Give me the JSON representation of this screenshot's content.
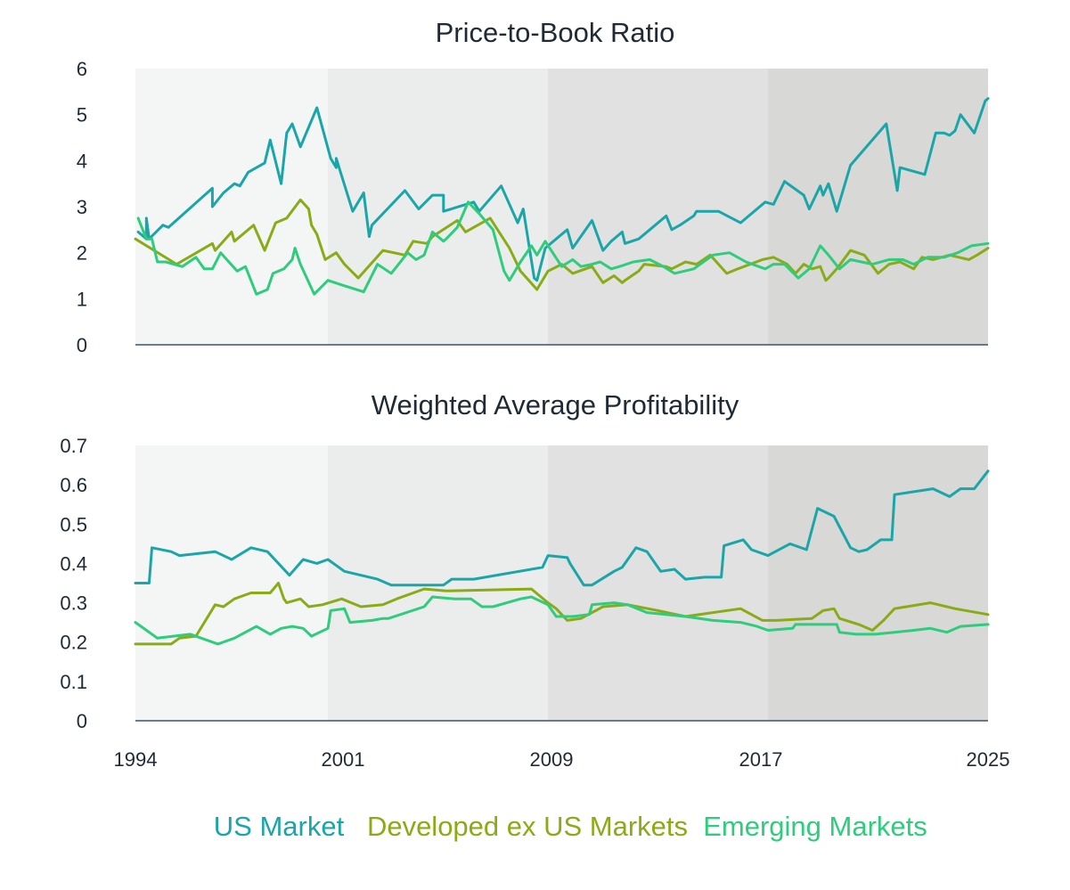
{
  "chart_data": {
    "type": "line",
    "x_tick_labels": [
      "1994",
      "2001",
      "2009",
      "2017",
      "2025"
    ],
    "x_range": [
      1994,
      2025
    ],
    "era_bands": [
      [
        1994,
        2001
      ],
      [
        2001,
        2009
      ],
      [
        2009,
        2017
      ],
      [
        2017,
        2025
      ]
    ],
    "colors": {
      "us": "#1aa6a8",
      "developed": "#8aab16",
      "emerging": "#2ecc7c",
      "bands": [
        "#f4f6f5",
        "#eaedec",
        "#e0e1e0",
        "#d8d8d7"
      ],
      "axis": "#3d5266"
    },
    "legend": [
      {
        "key": "us",
        "label": "US Market"
      },
      {
        "key": "developed",
        "label": "Developed ex US Markets"
      },
      {
        "key": "emerging",
        "label": "Emerging Markets"
      }
    ],
    "panels": [
      {
        "title": "Price-to-Book Ratio",
        "ylim": [
          0,
          6
        ],
        "y_ticks": [
          "0",
          "1",
          "2",
          "3",
          "4",
          "5",
          "6"
        ],
        "series": [
          {
            "key": "us",
            "name": "US Market",
            "x": [
              1994.1,
              1994.4,
              1994.4,
              1994.5,
              1995.0,
              1995.2,
              1996.8,
              1996.8,
              1997.2,
              1997.6,
              1997.8,
              1998.1,
              1998.7,
              1998.9,
              1999.3,
              1999.5,
              1999.7,
              2000.0,
              2000.6,
              2001.1,
              2001.3,
              2001.3,
              2001.9,
              2002.3,
              2002.5,
              2002.6,
              2003.8,
              2004.3,
              2004.8,
              2005.2,
              2005.2,
              2006.3,
              2006.5,
              2007.3,
              2007.9,
              2008.1,
              2008.5,
              2008.6,
              2008.9,
              2009.0,
              2009.7,
              2009.9,
              2010.6,
              2011.0,
              2011.3,
              2011.7,
              2011.8,
              2012.3,
              2012.8,
              2013.3,
              2013.5,
              2013.8,
              2014.3,
              2014.4,
              2015.2,
              2016.0,
              2016.9,
              2017.2,
              2017.6,
              2018.3,
              2018.5,
              2018.9,
              2019.0,
              2019.2,
              2019.5,
              2019.7,
              2020.0,
              2021.3,
              2021.7,
              2021.8,
              2022.7,
              2023.1,
              2023.4,
              2023.6,
              2023.8,
              2024.0,
              2024.5,
              2024.9,
              2025.0
            ],
            "y": [
              2.45,
              2.3,
              2.75,
              2.3,
              2.6,
              2.55,
              3.4,
              3.0,
              3.3,
              3.5,
              3.45,
              3.75,
              3.95,
              4.45,
              3.5,
              4.6,
              4.8,
              4.3,
              5.15,
              4.05,
              3.85,
              4.05,
              2.9,
              3.3,
              2.35,
              2.6,
              3.35,
              2.95,
              3.25,
              3.25,
              2.9,
              3.1,
              2.9,
              3.45,
              2.65,
              2.95,
              1.45,
              1.4,
              2.1,
              2.15,
              2.5,
              2.1,
              2.7,
              2.05,
              2.25,
              2.45,
              2.2,
              2.3,
              2.55,
              2.8,
              2.5,
              2.6,
              2.8,
              2.9,
              2.9,
              2.65,
              3.1,
              3.05,
              3.55,
              3.25,
              2.95,
              3.45,
              3.25,
              3.5,
              2.9,
              3.3,
              3.9,
              4.8,
              3.35,
              3.85,
              3.7,
              4.6,
              4.6,
              4.55,
              4.65,
              5.0,
              4.6,
              5.3,
              5.35
            ]
          },
          {
            "key": "developed",
            "name": "Developed ex US Markets",
            "x": [
              1994.0,
              1995.5,
              1996.8,
              1996.9,
              1997.5,
              1997.6,
              1998.3,
              1998.7,
              1999.1,
              1999.5,
              2000.0,
              2000.3,
              2000.4,
              2000.6,
              2000.9,
              2001.3,
              2001.6,
              2002.1,
              2003.0,
              2003.8,
              2004.1,
              2004.6,
              2004.8,
              2005.7,
              2006.0,
              2006.9,
              2007.6,
              2008.0,
              2008.6,
              2009.0,
              2009.5,
              2009.9,
              2010.6,
              2011.0,
              2011.4,
              2011.7,
              2011.8,
              2012.3,
              2012.5,
              2013.3,
              2013.5,
              2014.0,
              2014.4,
              2014.9,
              2015.5,
              2015.9,
              2016.8,
              2017.2,
              2017.7,
              2018.0,
              2018.3,
              2018.6,
              2018.9,
              2019.1,
              2019.2,
              2019.5,
              2020.0,
              2020.5,
              2021.0,
              2021.4,
              2021.8,
              2022.3,
              2022.6,
              2023.0,
              2023.6,
              2024.3,
              2024.6,
              2025.0
            ],
            "y": [
              2.3,
              1.75,
              2.2,
              2.05,
              2.45,
              2.25,
              2.6,
              2.05,
              2.65,
              2.75,
              3.15,
              2.95,
              2.6,
              2.4,
              1.85,
              2.0,
              1.75,
              1.45,
              2.05,
              1.95,
              2.25,
              2.2,
              2.35,
              2.7,
              2.45,
              2.75,
              2.1,
              1.6,
              1.2,
              1.6,
              1.75,
              1.55,
              1.7,
              1.35,
              1.5,
              1.35,
              1.4,
              1.6,
              1.75,
              1.7,
              1.65,
              1.8,
              1.75,
              1.95,
              1.55,
              1.65,
              1.85,
              1.9,
              1.75,
              1.55,
              1.75,
              1.65,
              1.7,
              1.4,
              1.45,
              1.65,
              2.05,
              1.95,
              1.55,
              1.75,
              1.8,
              1.65,
              1.9,
              1.85,
              1.95,
              1.85,
              1.95,
              2.1
            ]
          },
          {
            "key": "emerging",
            "name": "Emerging Markets",
            "x": [
              1994.1,
              1994.4,
              1994.6,
              1994.8,
              1995.1,
              1995.7,
              1996.2,
              1996.5,
              1996.8,
              1997.1,
              1997.7,
              1998.0,
              1998.4,
              1998.8,
              1999.0,
              1999.4,
              1999.7,
              1999.8,
              2000.0,
              2000.5,
              2001.0,
              2001.5,
              2002.3,
              2002.8,
              2003.3,
              2003.5,
              2003.9,
              2004.2,
              2004.5,
              2004.8,
              2005.2,
              2005.3,
              2005.7,
              2006.1,
              2006.5,
              2007.0,
              2007.4,
              2007.6,
              2008.0,
              2008.4,
              2008.6,
              2008.9,
              2009.5,
              2009.9,
              2010.2,
              2010.6,
              2010.9,
              2011.3,
              2011.6,
              2012.1,
              2012.7,
              2013.2,
              2013.6,
              2014.3,
              2015.0,
              2015.6,
              2016.2,
              2016.9,
              2017.2,
              2017.6,
              2018.1,
              2018.5,
              2018.9,
              2019.2,
              2019.6,
              2020.0,
              2020.8,
              2021.4,
              2021.9,
              2022.3,
              2022.8,
              2023.4,
              2023.9,
              2024.4,
              2025.0
            ],
            "y": [
              2.75,
              2.3,
              2.3,
              1.8,
              1.8,
              1.7,
              1.9,
              1.65,
              1.65,
              2.0,
              1.6,
              1.7,
              1.1,
              1.2,
              1.55,
              1.65,
              1.85,
              2.1,
              1.75,
              1.1,
              1.4,
              1.3,
              1.15,
              1.75,
              1.55,
              1.7,
              2.0,
              1.85,
              1.95,
              2.45,
              2.25,
              2.3,
              2.55,
              3.1,
              2.85,
              2.5,
              1.6,
              1.4,
              1.8,
              2.15,
              1.95,
              2.25,
              1.7,
              1.85,
              1.7,
              1.75,
              1.8,
              1.65,
              1.7,
              1.8,
              1.85,
              1.7,
              1.55,
              1.65,
              1.95,
              2.0,
              1.8,
              1.65,
              1.75,
              1.75,
              1.45,
              1.65,
              2.15,
              1.95,
              1.65,
              1.85,
              1.75,
              1.85,
              1.85,
              1.75,
              1.9,
              1.9,
              2.0,
              2.15,
              2.2
            ]
          }
        ]
      },
      {
        "title": "Weighted Average Profitability",
        "ylim": [
          0,
          0.7
        ],
        "y_ticks": [
          "0",
          "0.1",
          "0.2",
          "0.3",
          "0.4",
          "0.5",
          "0.6",
          "0.7"
        ],
        "series": [
          {
            "key": "us",
            "name": "US Market",
            "x": [
              1994.0,
              1994.5,
              1994.6,
              1995.3,
              1995.6,
              1996.9,
              1997.5,
              1998.2,
              1998.8,
              1999.6,
              2000.1,
              2000.6,
              2001.0,
              2001.6,
              2002.8,
              2003.3,
              2003.5,
              2005.2,
              2005.5,
              2006.3,
              2008.8,
              2009.0,
              2009.7,
              2009.8,
              2010.3,
              2010.6,
              2011.4,
              2011.7,
              2012.2,
              2012.6,
              2013.1,
              2013.6,
              2014.0,
              2014.7,
              2015.3,
              2015.4,
              2016.1,
              2016.4,
              2017.0,
              2017.8,
              2018.4,
              2018.8,
              2019.4,
              2020.0,
              2020.3,
              2020.6,
              2021.1,
              2021.5,
              2021.6,
              2023.0,
              2023.6,
              2024.0,
              2024.5,
              2025.0
            ],
            "y": [
              0.35,
              0.35,
              0.44,
              0.43,
              0.42,
              0.43,
              0.41,
              0.44,
              0.43,
              0.37,
              0.41,
              0.4,
              0.41,
              0.38,
              0.36,
              0.345,
              0.345,
              0.345,
              0.36,
              0.36,
              0.39,
              0.42,
              0.415,
              0.4,
              0.345,
              0.345,
              0.38,
              0.39,
              0.44,
              0.43,
              0.38,
              0.385,
              0.36,
              0.365,
              0.365,
              0.445,
              0.46,
              0.435,
              0.42,
              0.45,
              0.435,
              0.54,
              0.52,
              0.44,
              0.43,
              0.435,
              0.46,
              0.46,
              0.575,
              0.59,
              0.57,
              0.59,
              0.59,
              0.635
            ]
          },
          {
            "key": "developed",
            "name": "Developed ex US Markets",
            "x": [
              1994.0,
              1995.3,
              1995.6,
              1996.2,
              1996.9,
              1997.2,
              1997.6,
              1998.2,
              1998.6,
              1998.9,
              1999.2,
              1999.4,
              1999.5,
              2000.0,
              2000.3,
              2000.8,
              2001.5,
              2002.2,
              2003.0,
              2003.5,
              2004.5,
              2005.3,
              2008.4,
              2009.0,
              2009.3,
              2009.7,
              2010.2,
              2011.0,
              2011.9,
              2013.0,
              2014.0,
              2016.0,
              2016.8,
              2017.3,
              2018.6,
              2019.0,
              2019.4,
              2019.6,
              2020.3,
              2020.8,
              2021.2,
              2021.6,
              2022.9,
              2023.8,
              2025.0
            ],
            "y": [
              0.195,
              0.195,
              0.21,
              0.215,
              0.295,
              0.29,
              0.31,
              0.325,
              0.325,
              0.325,
              0.35,
              0.31,
              0.3,
              0.31,
              0.29,
              0.295,
              0.31,
              0.29,
              0.295,
              0.31,
              0.335,
              0.33,
              0.335,
              0.3,
              0.285,
              0.255,
              0.26,
              0.29,
              0.295,
              0.28,
              0.265,
              0.285,
              0.255,
              0.255,
              0.26,
              0.28,
              0.285,
              0.26,
              0.245,
              0.23,
              0.255,
              0.285,
              0.3,
              0.285,
              0.27
            ]
          },
          {
            "key": "emerging",
            "name": "Emerging Markets",
            "x": [
              1994.0,
              1994.8,
              1996.0,
              1997.0,
              1997.6,
              1998.4,
              1998.9,
              1999.3,
              1999.7,
              2000.1,
              2000.4,
              2000.7,
              2001.0,
              2001.1,
              2001.6,
              2001.8,
              2002.6,
              2003.0,
              2003.2,
              2004.5,
              2004.8,
              2005.6,
              2006.2,
              2006.6,
              2007.0,
              2008.0,
              2008.4,
              2009.0,
              2009.3,
              2009.9,
              2010.5,
              2010.6,
              2011.4,
              2011.9,
              2012.6,
              2013.3,
              2014.0,
              2015.0,
              2016.0,
              2016.6,
              2017.0,
              2017.9,
              2018.0,
              2018.9,
              2019.5,
              2019.6,
              2020.2,
              2020.9,
              2021.6,
              2022.3,
              2022.9,
              2023.5,
              2024.0,
              2025.0
            ],
            "y": [
              0.25,
              0.21,
              0.22,
              0.195,
              0.21,
              0.24,
              0.22,
              0.235,
              0.24,
              0.235,
              0.215,
              0.225,
              0.235,
              0.28,
              0.285,
              0.25,
              0.255,
              0.26,
              0.26,
              0.29,
              0.315,
              0.31,
              0.31,
              0.29,
              0.29,
              0.31,
              0.315,
              0.295,
              0.265,
              0.265,
              0.27,
              0.295,
              0.3,
              0.295,
              0.275,
              0.27,
              0.265,
              0.255,
              0.25,
              0.24,
              0.23,
              0.235,
              0.245,
              0.245,
              0.245,
              0.225,
              0.22,
              0.22,
              0.225,
              0.23,
              0.235,
              0.225,
              0.24,
              0.245
            ]
          }
        ]
      }
    ]
  }
}
